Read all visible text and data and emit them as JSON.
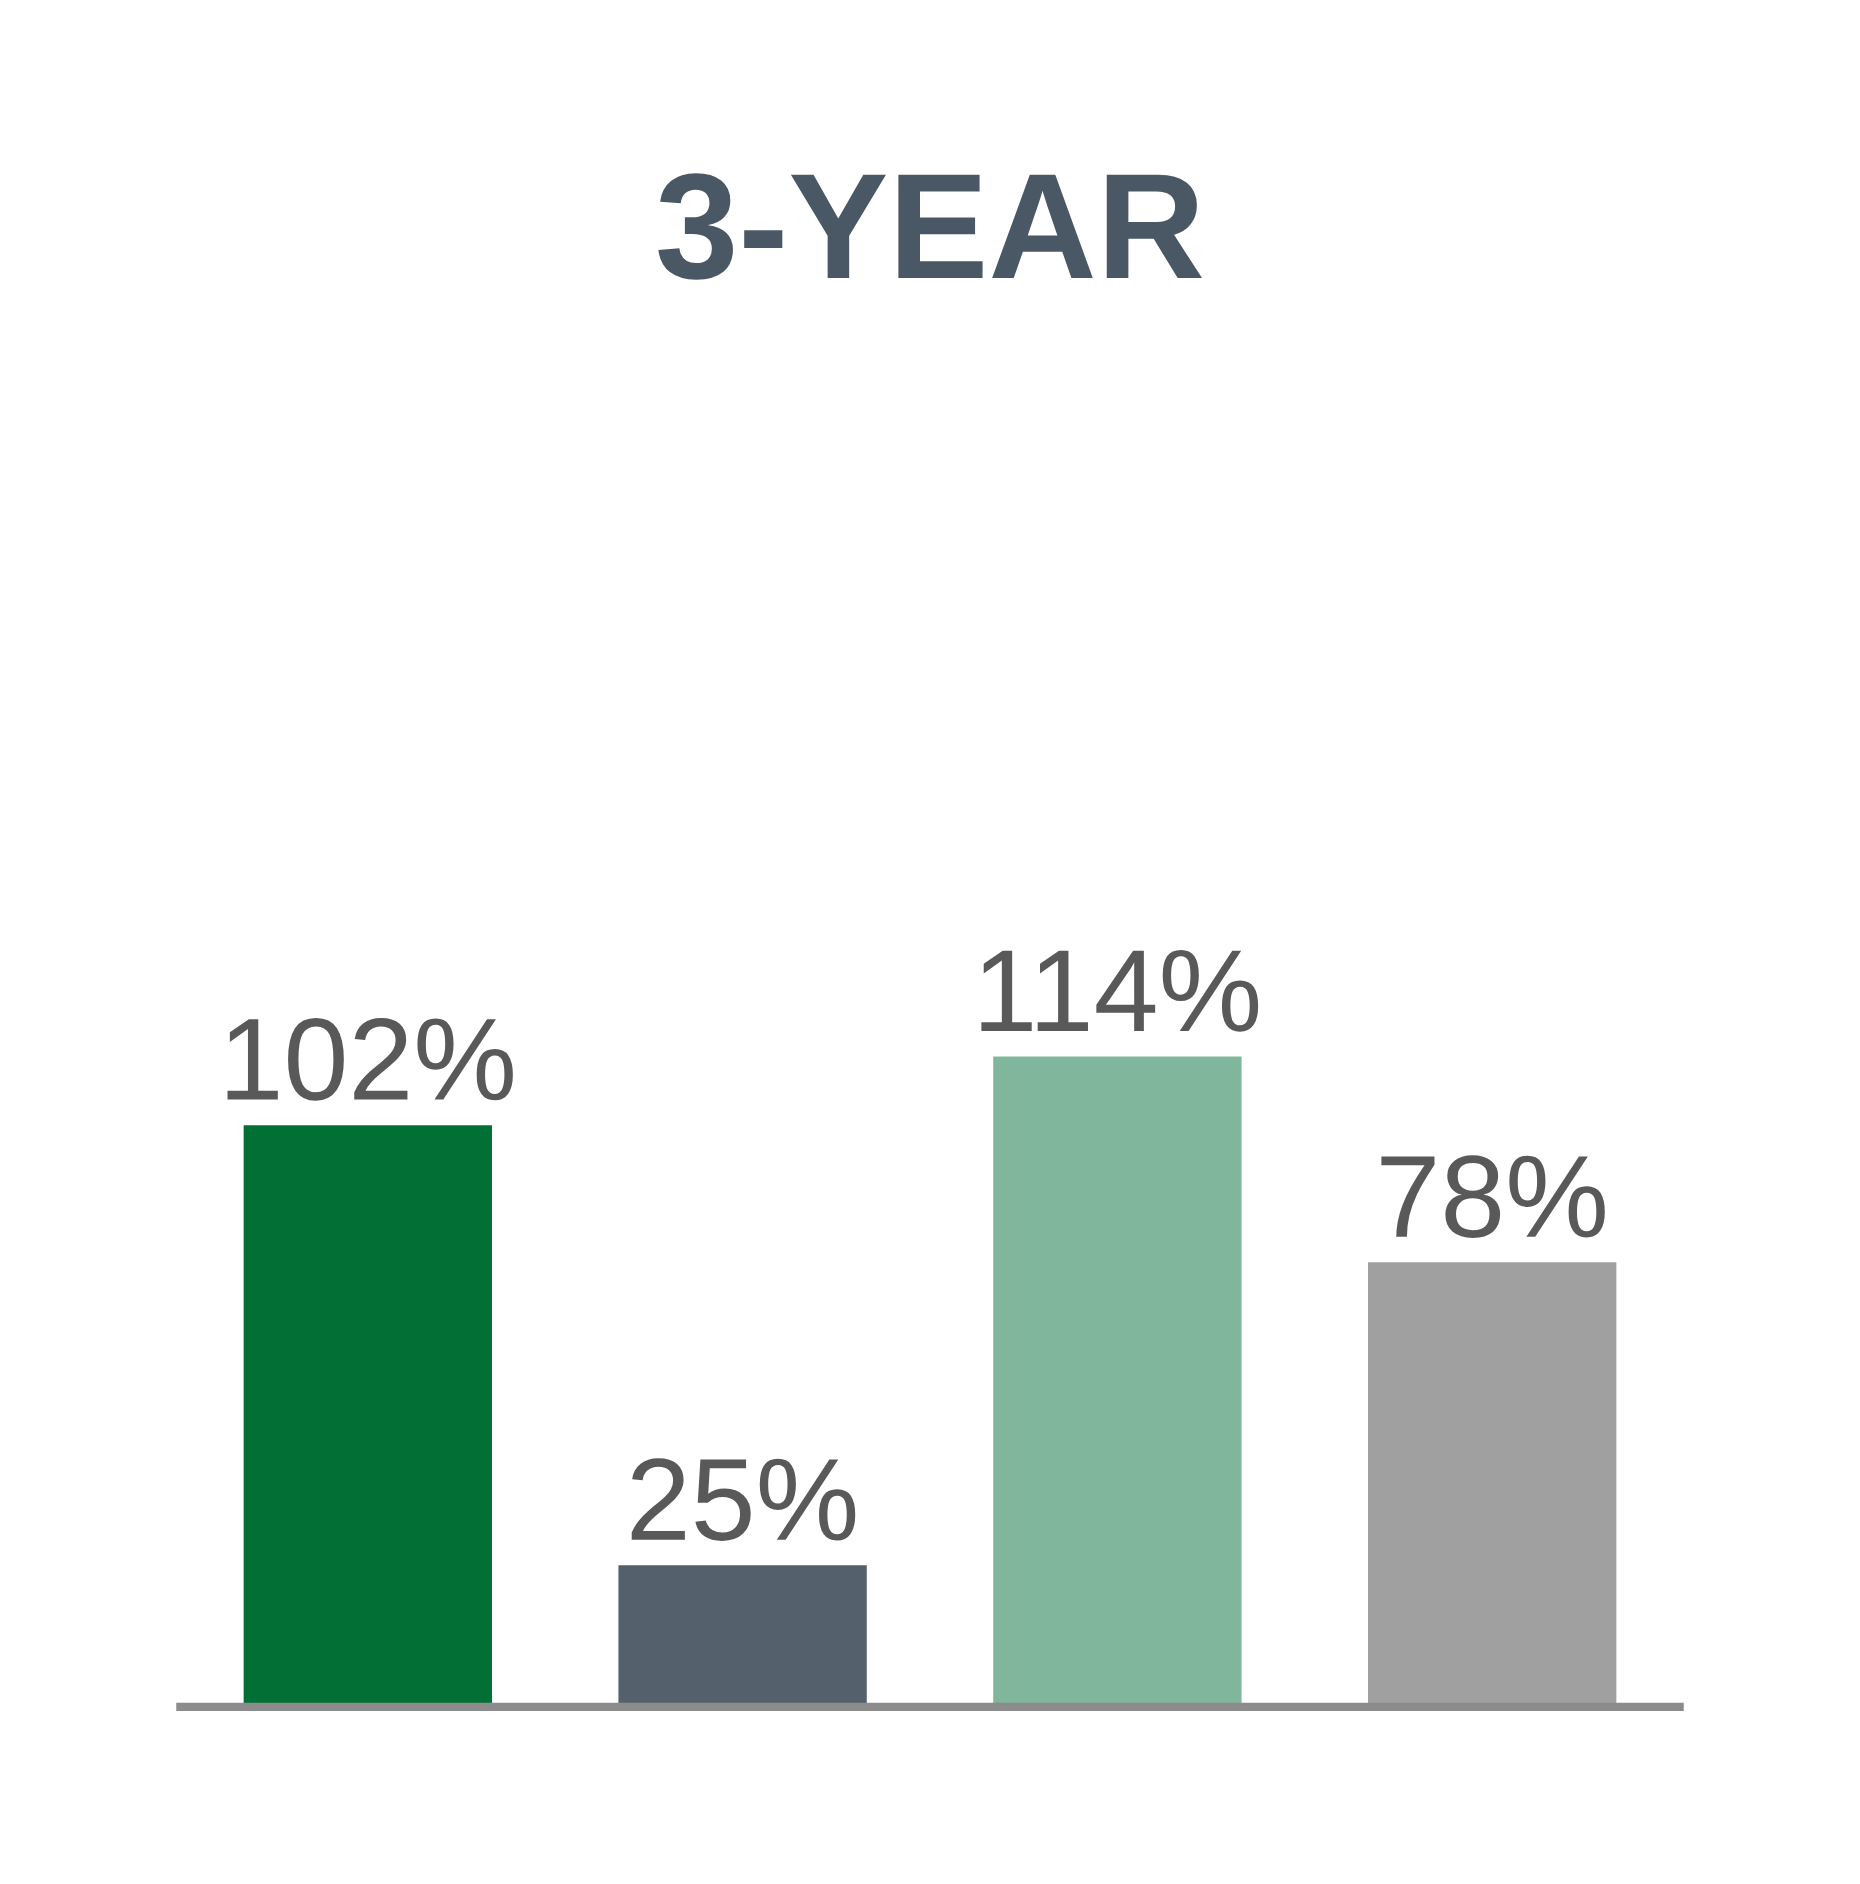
{
  "chart_data": {
    "type": "bar",
    "title": "3-YEAR",
    "categories": [
      null,
      null,
      null,
      null
    ],
    "values": [
      102,
      25,
      114,
      78
    ],
    "colors": [
      "#026f35",
      "#54606b",
      "#80b69b",
      "#a0a0a0"
    ],
    "value_labels": [
      "102%",
      "25%",
      "114%",
      "78%"
    ],
    "grid": false,
    "legend": false
  }
}
